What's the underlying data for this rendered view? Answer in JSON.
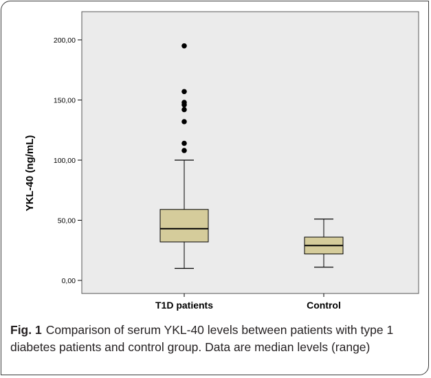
{
  "chart_data": {
    "type": "box",
    "ylabel": "YKL-40 (ng/mL)",
    "ylim": [
      0,
      200
    ],
    "yticks": [
      "0,00",
      "50,00",
      "100,00",
      "150,00",
      "200,00"
    ],
    "ytick_values": [
      0,
      50,
      100,
      150,
      200
    ],
    "categories": [
      "T1D patients",
      "Control"
    ],
    "series": [
      {
        "category": "T1D patients",
        "min": 10,
        "q1": 32,
        "median": 43,
        "q3": 59,
        "max": 100,
        "outliers": [
          108,
          114,
          132,
          142,
          146,
          148,
          157,
          195
        ]
      },
      {
        "category": "Control",
        "min": 11,
        "q1": 22,
        "median": 29,
        "q3": 36,
        "max": 51,
        "outliers": []
      }
    ],
    "colors": {
      "box_fill": "#d5cc9b",
      "plot_bg": "#ebebeb"
    }
  },
  "caption": {
    "label": "Fig. 1",
    "text": "Comparison of serum YKL-40 levels between patients with type 1 diabetes patients and control group. Data are median levels (range)"
  }
}
